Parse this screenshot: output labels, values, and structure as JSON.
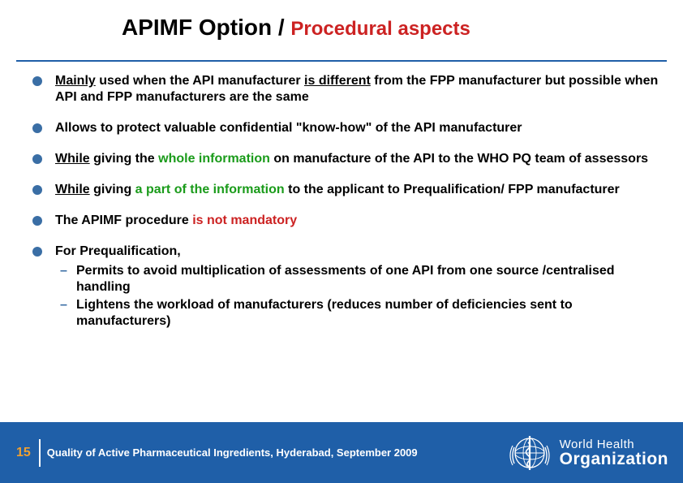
{
  "colors": {
    "blue": "#1f5fa8",
    "bullet": "#3a6ea5",
    "red": "#cc2222",
    "green": "#1a9b1a",
    "orange": "#f0a030",
    "black": "#000000",
    "white": "#ffffff"
  },
  "title": {
    "part1": "APIMF Option",
    "slash": " / ",
    "part2": "Procedural aspects",
    "part1_color": "#000000",
    "part2_color": "#cc2222",
    "fontsize_main": 28,
    "fontsize_sub": 24
  },
  "bullets": [
    {
      "segments": [
        {
          "text": "Mainly",
          "color": "#000000",
          "underline": true
        },
        {
          "text": " used when the API manufacturer ",
          "color": "#000000"
        },
        {
          "text": "is different",
          "color": "#000000",
          "underline": true
        },
        {
          "text": " from the FPP manufacturer but possible when API and FPP manufacturers are the same",
          "color": "#000000"
        }
      ]
    },
    {
      "segments": [
        {
          "text": "Allows to protect valuable confidential \"know-how\" of the API manufacturer",
          "color": "#000000"
        }
      ]
    },
    {
      "segments": [
        {
          "text": "While",
          "color": "#000000",
          "underline": true
        },
        {
          "text": " giving the ",
          "color": "#000000"
        },
        {
          "text": "whole information",
          "color": "#1a9b1a"
        },
        {
          "text": " on manufacture of the API to the WHO PQ team of assessors",
          "color": "#000000"
        }
      ]
    },
    {
      "segments": [
        {
          "text": "While",
          "color": "#000000",
          "underline": true
        },
        {
          "text": " giving ",
          "color": "#000000"
        },
        {
          "text": "a part of the information",
          "color": "#1a9b1a"
        },
        {
          "text": " to the applicant to Prequalification/ FPP manufacturer",
          "color": "#000000"
        }
      ]
    },
    {
      "segments": [
        {
          "text": "The APIMF procedure ",
          "color": "#000000"
        },
        {
          "text": "is not mandatory",
          "color": "#cc2222"
        }
      ]
    },
    {
      "segments": [
        {
          "text": "For Prequalification,",
          "color": "#000000"
        }
      ],
      "sub": [
        {
          "segments": [
            {
              "text": "Permits to avoid multiplication of assessments of one API from one source /centralised handling",
              "color": "#000000"
            }
          ]
        },
        {
          "segments": [
            {
              "text": "Lightens the workload of manufacturers (reduces number of deficiencies sent to manufacturers)",
              "color": "#000000"
            }
          ]
        }
      ]
    }
  ],
  "footer": {
    "page": "15",
    "text_line": "Quality of Active Pharmaceutical Ingredients, Hyderabad, September 2009",
    "logo_line1": "World Health",
    "logo_line2": "Organization"
  }
}
